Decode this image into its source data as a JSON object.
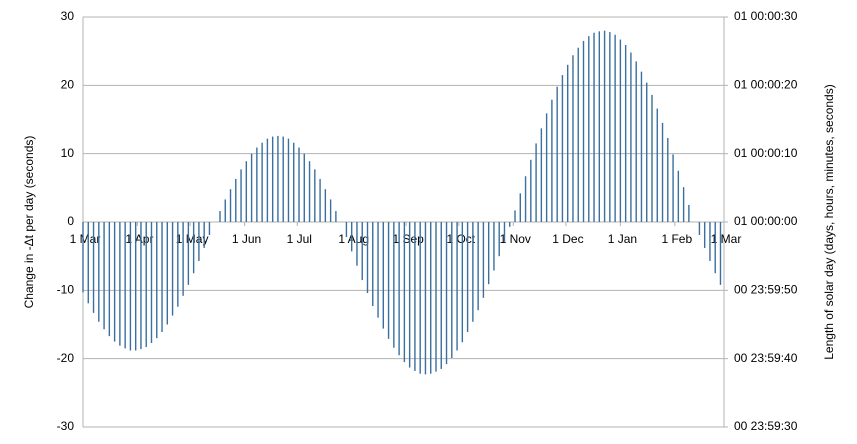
{
  "chart_data": {
    "type": "bar",
    "y_label": "Change in -Δt per day (seconds)",
    "y2_label": "Length of solar day (days, hours, minutes, seconds)",
    "color": "#3a6f9f",
    "grid": true,
    "xlim": [
      0,
      365
    ],
    "xticks": [
      {
        "value": 0,
        "label": "1 Mar"
      },
      {
        "value": 31,
        "label": "1 Apr"
      },
      {
        "value": 61,
        "label": "1 May"
      },
      {
        "value": 92,
        "label": "1 Jun"
      },
      {
        "value": 122,
        "label": "1 Jul"
      },
      {
        "value": 153,
        "label": "1 Aug"
      },
      {
        "value": 184,
        "label": "1 Sep"
      },
      {
        "value": 214,
        "label": "1 Oct"
      },
      {
        "value": 245,
        "label": "1 Nov"
      },
      {
        "value": 275,
        "label": "1 Dec"
      },
      {
        "value": 306,
        "label": "1 Jan"
      },
      {
        "value": 337,
        "label": "1 Feb"
      },
      {
        "value": 365,
        "label": "1 Mar"
      }
    ],
    "ylim": [
      -30,
      30
    ],
    "yticks": [
      -30,
      -20,
      -10,
      0,
      10,
      20,
      30
    ],
    "y2lim": [
      -30,
      30
    ],
    "y2ticks": [
      {
        "value": -30,
        "label": "00 23:59:30"
      },
      {
        "value": -20,
        "label": "00 23:59:40"
      },
      {
        "value": -10,
        "label": "00 23:59:50"
      },
      {
        "value": 0,
        "label": "01 00:00:00"
      },
      {
        "value": 10,
        "label": "01 00:00:10"
      },
      {
        "value": 20,
        "label": "01 00:00:20"
      },
      {
        "value": 30,
        "label": "01 00:00:30"
      }
    ],
    "x": [
      0,
      3,
      6,
      9,
      12,
      15,
      18,
      21,
      24,
      27,
      30,
      33,
      36,
      39,
      42,
      45,
      48,
      51,
      54,
      57,
      60,
      63,
      66,
      69,
      72,
      75,
      78,
      81,
      84,
      87,
      90,
      93,
      96,
      99,
      102,
      105,
      108,
      111,
      114,
      117,
      120,
      123,
      126,
      129,
      132,
      135,
      138,
      141,
      144,
      147,
      150,
      153,
      156,
      159,
      162,
      165,
      168,
      171,
      174,
      177,
      180,
      183,
      186,
      189,
      192,
      195,
      198,
      201,
      204,
      207,
      210,
      213,
      216,
      219,
      222,
      225,
      228,
      231,
      234,
      237,
      240,
      243,
      246,
      249,
      252,
      255,
      258,
      261,
      264,
      267,
      270,
      273,
      276,
      279,
      282,
      285,
      288,
      291,
      294,
      297,
      300,
      303,
      306,
      309,
      312,
      315,
      318,
      321,
      324,
      327,
      330,
      333,
      336,
      339,
      342,
      345,
      348,
      351,
      354,
      357,
      360,
      363
    ],
    "values": [
      -10.3,
      -11.9,
      -13.3,
      -14.6,
      -15.7,
      -16.7,
      -17.5,
      -18.1,
      -18.5,
      -18.8,
      -18.8,
      -18.6,
      -18.3,
      -17.7,
      -17.0,
      -16.1,
      -15.0,
      -13.7,
      -12.4,
      -10.8,
      -9.2,
      -7.5,
      -5.7,
      -3.8,
      -1.9,
      0,
      1.6,
      3.3,
      4.8,
      6.3,
      7.7,
      8.9,
      10.0,
      10.9,
      11.6,
      12.2,
      12.5,
      12.6,
      12.5,
      12.2,
      11.6,
      10.9,
      10.0,
      8.9,
      7.7,
      6.3,
      4.8,
      3.3,
      1.6,
      0,
      -2.2,
      -4.3,
      -6.4,
      -8.5,
      -10.4,
      -12.3,
      -14.0,
      -15.6,
      -17.1,
      -18.4,
      -19.5,
      -20.5,
      -21.3,
      -21.8,
      -22.2,
      -22.3,
      -22.2,
      -21.9,
      -21.5,
      -20.8,
      -19.9,
      -18.8,
      -17.6,
      -16.1,
      -14.6,
      -12.9,
      -11.1,
      -9.1,
      -7.1,
      -5.0,
      -2.9,
      -0.7,
      1.7,
      4.2,
      6.7,
      9.1,
      11.5,
      13.7,
      15.9,
      17.9,
      19.8,
      21.5,
      23.0,
      24.4,
      25.5,
      26.5,
      27.2,
      27.7,
      27.9,
      28.0,
      27.8,
      27.4,
      26.7,
      25.9,
      24.8,
      23.5,
      22.0,
      20.4,
      18.6,
      16.6,
      14.5,
      12.3,
      9.9,
      7.5,
      5.1,
      2.5,
      0,
      -1.9,
      -3.8,
      -5.7,
      -7.5,
      -9.2
    ]
  }
}
